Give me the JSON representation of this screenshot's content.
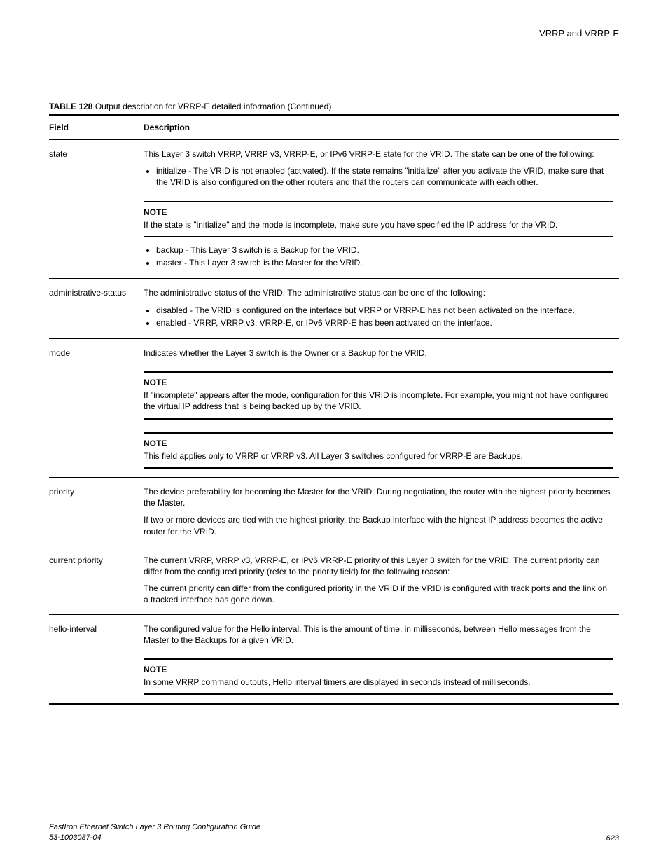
{
  "header": {
    "section": "VRRP and VRRP-E"
  },
  "table": {
    "caption_label": "TABLE 128",
    "caption_text": "Output description for VRRP-E detailed information (Continued)",
    "columns": {
      "field": "Field",
      "description": "Description"
    },
    "rows": {
      "state": {
        "field": "state",
        "p1": "This Layer 3 switch VRRP, VRRP v3, VRRP-E, or IPv6 VRRP-E state for the VRID. The state can be one of the following:",
        "b1": "initialize - The VRID is not enabled (activated). If the state remains \"initialize\" after you activate the VRID, make sure that the VRID is also configured on the other routers and that the routers can communicate with each other.",
        "note_label": "NOTE",
        "note_text": "If the state is \"initialize\" and the mode is incomplete, make sure you have specified the IP address for the VRID.",
        "b2": "backup - This Layer 3 switch is a Backup for the VRID.",
        "b3": "master - This Layer 3 switch is the Master for the VRID."
      },
      "admin": {
        "field": "administrative-status",
        "p1": "The administrative status of the VRID. The administrative status can be one of the following:",
        "b1": "disabled - The VRID is configured on the interface but VRRP or VRRP-E has not been activated on the interface.",
        "b2": "enabled - VRRP, VRRP v3, VRRP-E, or IPv6 VRRP-E has been activated on the interface."
      },
      "mode": {
        "field": "mode",
        "p1": "Indicates whether the Layer 3 switch is the Owner or a Backup for the VRID.",
        "note1_label": "NOTE",
        "note1_text": "If \"incomplete\" appears after the mode, configuration for this VRID is incomplete. For example, you might not have configured the virtual IP address that is being backed up by the VRID.",
        "note2_label": "NOTE",
        "note2_text": "This field applies only to VRRP or VRRP v3. All Layer 3 switches configured for VRRP-E are Backups."
      },
      "priority": {
        "field": "priority",
        "p1": "The device preferability for becoming the Master for the VRID. During negotiation, the router with the highest priority becomes the Master.",
        "p2": "If two or more devices are tied with the highest priority, the Backup interface with the highest IP address becomes the active router for the VRID."
      },
      "current_priority": {
        "field": "current priority",
        "p1": "The current VRRP, VRRP v3, VRRP-E, or IPv6 VRRP-E priority of this Layer 3 switch for the VRID. The current priority can differ from the configured priority (refer to the priority field) for the following reason:",
        "p2": "The current priority can differ from the configured priority in the VRID if the VRID is configured with track ports and the link on a tracked interface has gone down."
      },
      "hello": {
        "field": "hello-interval",
        "p1": "The configured value for the Hello interval. This is the amount of time, in milliseconds, between Hello messages from the Master to the Backups for a given VRID.",
        "note_label": "NOTE",
        "note_text": "In some VRRP command outputs, Hello interval timers are displayed in seconds instead of milliseconds."
      }
    }
  },
  "footer": {
    "title": "FastIron Ethernet Switch Layer 3 Routing Configuration Guide",
    "docnum": "53-1003087-04",
    "pagenum": "623"
  }
}
